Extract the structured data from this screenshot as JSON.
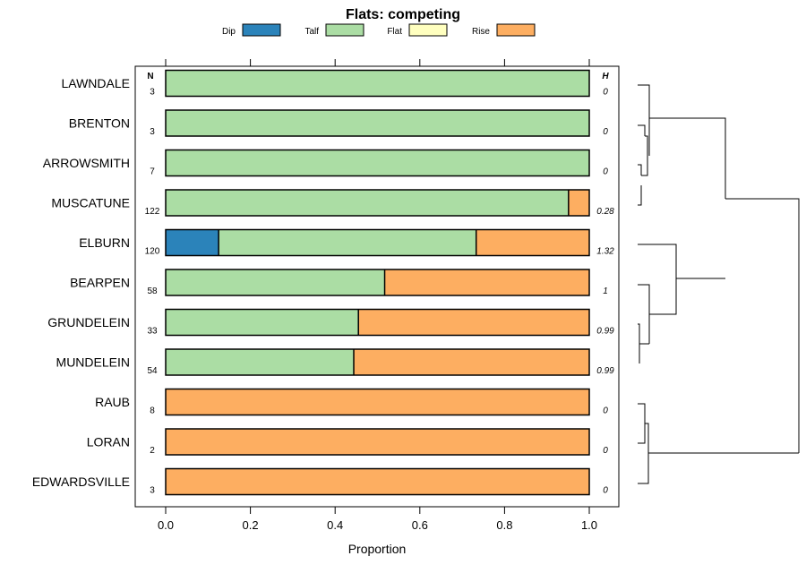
{
  "chart_data": {
    "type": "bar",
    "orientation": "horizontal",
    "stacked": true,
    "title": "Flats: competing",
    "xlabel": "Proportion",
    "xlim": [
      0,
      1
    ],
    "xticks": [
      "0.0",
      "0.2",
      "0.4",
      "0.6",
      "0.8",
      "1.0"
    ],
    "xtick_values": [
      0,
      0.2,
      0.4,
      0.6,
      0.8,
      1.0
    ],
    "n_header": "N",
    "h_header": "H",
    "legend": [
      {
        "name": "Dip",
        "color": "#2b83ba"
      },
      {
        "name": "Talf",
        "color": "#abdda4"
      },
      {
        "name": "Flat",
        "color": "#ffffbf"
      },
      {
        "name": "Rise",
        "color": "#fdae61"
      }
    ],
    "categories": [
      "LAWNDALE",
      "BRENTON",
      "ARROWSMITH",
      "MUSCATUNE",
      "ELBURN",
      "BEARPEN",
      "GRUNDELEIN",
      "MUNDELEIN",
      "RAUB",
      "LORAN",
      "EDWARDSVILLE"
    ],
    "n": [
      "3",
      "3",
      "7",
      "122",
      "120",
      "58",
      "33",
      "54",
      "8",
      "2",
      "3"
    ],
    "h": [
      "0",
      "0",
      "0",
      "0.28",
      "1.32",
      "1",
      "0.99",
      "0.99",
      "0",
      "0",
      "0"
    ],
    "series": [
      {
        "name": "Dip",
        "values": [
          0,
          0,
          0,
          0,
          0.125,
          0,
          0,
          0,
          0,
          0,
          0
        ]
      },
      {
        "name": "Talf",
        "values": [
          1,
          1,
          1,
          0.951,
          0.608,
          0.517,
          0.455,
          0.444,
          0,
          0,
          0
        ]
      },
      {
        "name": "Flat",
        "values": [
          0,
          0,
          0,
          0,
          0,
          0,
          0,
          0,
          0,
          0,
          0
        ]
      },
      {
        "name": "Rise",
        "values": [
          0,
          0,
          0,
          0.049,
          0.267,
          0.483,
          0.545,
          0.556,
          1,
          1,
          1
        ]
      }
    ]
  }
}
